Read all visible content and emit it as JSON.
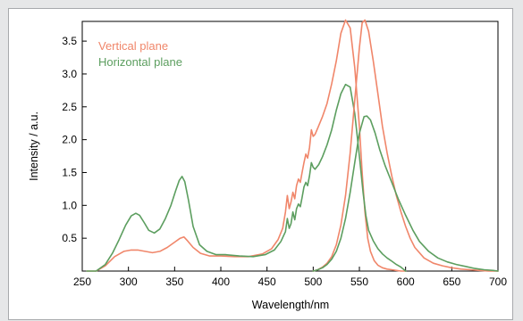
{
  "colors": {
    "vertical": "#f0866a",
    "horizontal": "#5c9e5f",
    "frame_bg": "#e6e7e8"
  },
  "chart_data": {
    "type": "line",
    "title": "",
    "xlabel": "Wavelength/nm",
    "ylabel": "Intensity / a.u.",
    "xlim": [
      250,
      700
    ],
    "ylim": [
      0,
      3.8
    ],
    "x_ticks": [
      250,
      300,
      350,
      400,
      450,
      500,
      550,
      600,
      650,
      700
    ],
    "y_ticks": [
      0.5,
      1.0,
      1.5,
      2.0,
      2.5,
      3.0,
      3.5
    ],
    "x_tick_labels": [
      "250",
      "300",
      "350",
      "400",
      "450",
      "500",
      "550",
      "600",
      "650",
      "700"
    ],
    "y_tick_labels": [
      "0.5",
      "1.0",
      "1.5",
      "2.0",
      "2.5",
      "3.0",
      "3.5"
    ],
    "grid": false,
    "legend_position": "top-left",
    "legend_entries": [
      "Vertical plane",
      "Horizontal plane"
    ],
    "series": [
      {
        "name": "Vertical plane",
        "color": "#f0866a",
        "x": [
          255,
          265,
          275,
          285,
          295,
          303,
          310,
          318,
          326,
          334,
          342,
          350,
          356,
          360,
          364,
          370,
          378,
          388,
          400,
          415,
          430,
          445,
          455,
          462,
          467,
          470,
          472,
          474,
          476,
          478,
          480,
          482,
          484,
          486,
          488,
          490,
          492,
          494,
          496,
          498,
          500,
          502,
          505,
          510,
          515,
          520,
          525,
          530,
          535,
          540,
          545,
          550,
          553,
          556,
          559,
          562,
          566,
          570,
          575,
          580,
          585,
          590,
          595,
          600
        ],
        "y": [
          0.0,
          0.0,
          0.08,
          0.22,
          0.3,
          0.32,
          0.32,
          0.3,
          0.28,
          0.3,
          0.36,
          0.44,
          0.5,
          0.52,
          0.46,
          0.36,
          0.27,
          0.23,
          0.23,
          0.22,
          0.22,
          0.26,
          0.34,
          0.48,
          0.65,
          0.9,
          1.15,
          0.95,
          1.05,
          1.2,
          1.1,
          1.3,
          1.4,
          1.35,
          1.5,
          1.65,
          1.78,
          1.72,
          1.88,
          2.15,
          2.05,
          2.08,
          2.18,
          2.35,
          2.55,
          2.85,
          3.2,
          3.62,
          3.82,
          3.7,
          3.1,
          2.2,
          1.5,
          0.9,
          0.5,
          0.3,
          0.16,
          0.09,
          0.05,
          0.03,
          0.02,
          0.01,
          0.0,
          0.0
        ]
      },
      {
        "name": "Horizontal plane",
        "color": "#5c9e5f",
        "x": [
          255,
          265,
          275,
          283,
          290,
          297,
          303,
          308,
          312,
          317,
          322,
          328,
          334,
          340,
          346,
          351,
          355,
          358,
          361,
          365,
          370,
          377,
          385,
          395,
          405,
          420,
          435,
          448,
          458,
          465,
          470,
          472,
          474,
          476,
          478,
          480,
          482,
          484,
          486,
          488,
          490,
          492,
          494,
          496,
          498,
          500,
          502,
          506,
          510,
          515,
          520,
          525,
          530,
          535,
          540,
          545,
          550,
          554,
          557,
          560,
          565,
          570,
          575,
          580,
          585,
          590,
          595,
          600
        ],
        "y": [
          0.0,
          0.0,
          0.1,
          0.28,
          0.48,
          0.7,
          0.84,
          0.88,
          0.85,
          0.74,
          0.62,
          0.58,
          0.64,
          0.8,
          1.0,
          1.22,
          1.38,
          1.44,
          1.36,
          1.08,
          0.68,
          0.4,
          0.3,
          0.25,
          0.25,
          0.23,
          0.22,
          0.25,
          0.32,
          0.45,
          0.6,
          0.8,
          0.65,
          0.72,
          0.9,
          0.78,
          0.95,
          1.02,
          0.98,
          1.12,
          1.28,
          1.35,
          1.3,
          1.45,
          1.65,
          1.58,
          1.55,
          1.62,
          1.74,
          1.92,
          2.15,
          2.45,
          2.7,
          2.84,
          2.8,
          2.4,
          1.75,
          1.2,
          0.85,
          0.62,
          0.46,
          0.34,
          0.26,
          0.2,
          0.15,
          0.1,
          0.06,
          0.0
        ]
      },
      {
        "name": "Vertical plane",
        "color": "#f0866a",
        "x": [
          500,
          505,
          510,
          515,
          520,
          525,
          530,
          535,
          540,
          545,
          550,
          553,
          556,
          560,
          565,
          570,
          575,
          580,
          585,
          590,
          595,
          600,
          605,
          610,
          620,
          630,
          640,
          650,
          660,
          670,
          680,
          690,
          700
        ],
        "y": [
          0.0,
          0.02,
          0.06,
          0.12,
          0.22,
          0.4,
          0.7,
          1.15,
          1.8,
          2.6,
          3.4,
          3.78,
          3.82,
          3.65,
          3.2,
          2.7,
          2.2,
          1.8,
          1.45,
          1.15,
          0.9,
          0.68,
          0.5,
          0.36,
          0.2,
          0.12,
          0.08,
          0.05,
          0.03,
          0.02,
          0.01,
          0.0,
          0.0
        ]
      },
      {
        "name": "Horizontal plane",
        "color": "#5c9e5f",
        "x": [
          500,
          505,
          510,
          515,
          520,
          525,
          530,
          535,
          540,
          545,
          550,
          555,
          558,
          562,
          567,
          572,
          578,
          585,
          592,
          600,
          608,
          615,
          625,
          635,
          645,
          655,
          665,
          675,
          685,
          695,
          700
        ],
        "y": [
          0.0,
          0.02,
          0.05,
          0.1,
          0.18,
          0.3,
          0.5,
          0.8,
          1.2,
          1.65,
          2.1,
          2.35,
          2.36,
          2.3,
          2.1,
          1.85,
          1.6,
          1.35,
          1.1,
          0.85,
          0.62,
          0.45,
          0.3,
          0.2,
          0.14,
          0.1,
          0.07,
          0.04,
          0.02,
          0.01,
          0.0
        ]
      }
    ]
  }
}
